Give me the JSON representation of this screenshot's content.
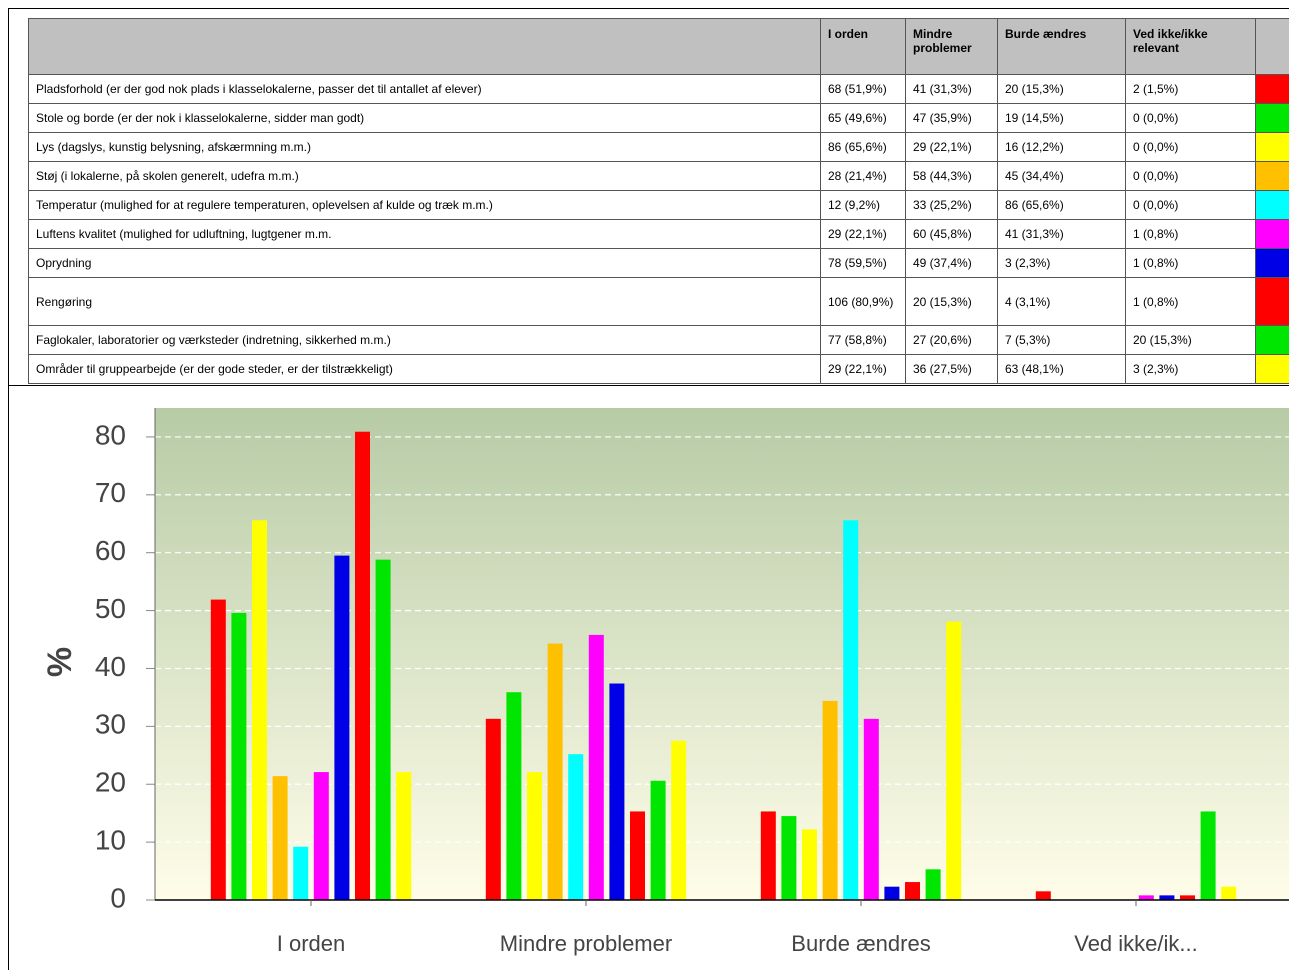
{
  "table": {
    "columns": [
      "I orden",
      "Mindre problemer",
      "Burde ændres",
      "Ved ikke/ikke relevant"
    ],
    "rows": [
      {
        "label": "Pladsforhold (er der god nok plads i klasselokalerne, passer det til antallet af elever)",
        "cells": [
          "68 (51,9%)",
          "41 (31,3%)",
          "20 (15,3%)",
          "2 (1,5%)"
        ]
      },
      {
        "label": "Stole og borde (er der nok i klasselokalerne, sidder man godt)",
        "cells": [
          "65 (49,6%)",
          "47 (35,9%)",
          "19 (14,5%)",
          "0 (0,0%)"
        ]
      },
      {
        "label": "Lys (dagslys, kunstig belysning, afskærmning m.m.)",
        "cells": [
          "86 (65,6%)",
          "29 (22,1%)",
          "16 (12,2%)",
          "0 (0,0%)"
        ]
      },
      {
        "label": "Støj (i lokalerne, på skolen generelt, udefra m.m.)",
        "cells": [
          "28 (21,4%)",
          "58 (44,3%)",
          "45 (34,4%)",
          "0 (0,0%)"
        ]
      },
      {
        "label": "Temperatur (mulighed for at regulere temperaturen, oplevelsen af kulde og træk m.m.)",
        "cells": [
          "12 (9,2%)",
          "33 (25,2%)",
          "86 (65,6%)",
          "0 (0,0%)"
        ]
      },
      {
        "label": "Luftens kvalitet (mulighed for udluftning, lugtgener m.m.",
        "cells": [
          "29 (22,1%)",
          "60 (45,8%)",
          "41 (31,3%)",
          "1 (0,8%)"
        ]
      },
      {
        "label": "Oprydning",
        "cells": [
          "78 (59,5%)",
          "49 (37,4%)",
          "3 (2,3%)",
          "1 (0,8%)"
        ]
      },
      {
        "label": "Rengøring",
        "cells": [
          "106 (80,9%)",
          "20 (15,3%)",
          "4 (3,1%)",
          "1 (0,8%)"
        ]
      },
      {
        "label": "Faglokaler, laboratorier og værksteder (indretning, sikkerhed m.m.)",
        "cells": [
          "77 (58,8%)",
          "27 (20,6%)",
          "7 (5,3%)",
          "20 (15,3%)"
        ]
      },
      {
        "label": "Områder til gruppearbejde (er der gode steder, er der tilstrækkeligt)",
        "cells": [
          "29 (22,1%)",
          "36 (27,5%)",
          "63 (48,1%)",
          "3 (2,3%)"
        ]
      }
    ]
  },
  "chart_data": {
    "type": "bar",
    "ylabel": "%",
    "categories": [
      "I orden",
      "Mindre problemer",
      "Burde ændres",
      "Ved ikke/ik..."
    ],
    "ylim": [
      0,
      85
    ],
    "yticks": [
      0,
      10,
      20,
      30,
      40,
      50,
      60,
      70,
      80
    ],
    "grid": true,
    "series": [
      {
        "color": "#ff0000",
        "values": [
          51.9,
          31.3,
          15.3,
          1.5
        ]
      },
      {
        "color": "#00e600",
        "values": [
          49.6,
          35.9,
          14.5,
          0
        ]
      },
      {
        "color": "#ffff00",
        "values": [
          65.6,
          22.1,
          12.2,
          0
        ]
      },
      {
        "color": "#ffc000",
        "values": [
          21.4,
          44.3,
          34.4,
          0
        ]
      },
      {
        "color": "#00ffff",
        "values": [
          9.2,
          25.2,
          65.6,
          0
        ]
      },
      {
        "color": "#ff00ff",
        "values": [
          22.1,
          45.8,
          31.3,
          0.8
        ]
      },
      {
        "color": "#0000e6",
        "values": [
          59.5,
          37.4,
          2.3,
          0.8
        ]
      },
      {
        "color": "#ff0000",
        "values": [
          80.9,
          15.3,
          3.1,
          0.8
        ]
      },
      {
        "color": "#00e600",
        "values": [
          58.8,
          20.6,
          5.3,
          15.3
        ]
      },
      {
        "color": "#ffff00",
        "values": [
          22.1,
          27.5,
          48.1,
          2.3
        ]
      }
    ]
  }
}
